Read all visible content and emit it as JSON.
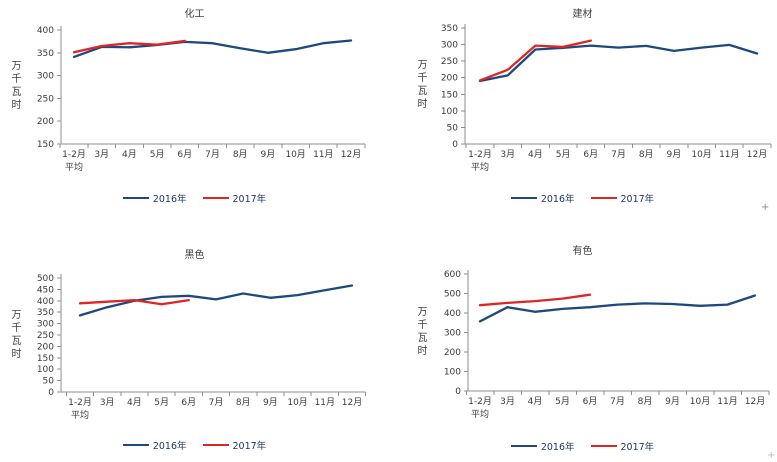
{
  "figure": {
    "background": "#ffffff",
    "artifact_plus": "+"
  },
  "chart_data": [
    {
      "type": "line",
      "title": "化工",
      "ylabel": "万千瓦时",
      "xlabel": "",
      "categories": [
        "1-2月平均",
        "3月",
        "4月",
        "5月",
        "6月",
        "7月",
        "8月",
        "9月",
        "10月",
        "11月",
        "12月"
      ],
      "ylim": [
        150,
        400
      ],
      "ytick_step": 50,
      "grid": false,
      "legend_position": "bottom",
      "series": [
        {
          "name": "2016年",
          "color": "#1F497D",
          "values": [
            341,
            363,
            362,
            367,
            374,
            371,
            360,
            350,
            358,
            371,
            377
          ]
        },
        {
          "name": "2017年",
          "color": "#E02525",
          "values": [
            351,
            365,
            371,
            368,
            376
          ]
        }
      ]
    },
    {
      "type": "line",
      "title": "建材",
      "ylabel": "万千瓦时",
      "xlabel": "",
      "categories": [
        "1-2月平均",
        "3月",
        "4月",
        "5月",
        "6月",
        "7月",
        "8月",
        "9月",
        "10月",
        "11月",
        "12月"
      ],
      "ylim": [
        0,
        350
      ],
      "ytick_step": 50,
      "grid": false,
      "legend_position": "bottom",
      "series": [
        {
          "name": "2016年",
          "color": "#1F497D",
          "values": [
            190,
            207,
            285,
            290,
            297,
            291,
            296,
            281,
            291,
            299,
            273
          ]
        },
        {
          "name": "2017年",
          "color": "#E02525",
          "values": [
            192,
            224,
            297,
            293,
            312
          ]
        }
      ]
    },
    {
      "type": "line",
      "title": "黑色",
      "ylabel": "万千瓦时",
      "xlabel": "",
      "categories": [
        "1-2月平均",
        "3月",
        "4月",
        "5月",
        "6月",
        "7月",
        "8月",
        "9月",
        "10月",
        "11月",
        "12月"
      ],
      "ylim": [
        0,
        500
      ],
      "ytick_step": 50,
      "grid": false,
      "legend_position": "bottom",
      "series": [
        {
          "name": "2016年",
          "color": "#1F497D",
          "values": [
            336,
            372,
            400,
            417,
            422,
            406,
            432,
            413,
            425,
            446,
            467
          ]
        },
        {
          "name": "2017年",
          "color": "#E02525",
          "values": [
            389,
            396,
            403,
            385,
            403
          ]
        }
      ]
    },
    {
      "type": "line",
      "title": "有色",
      "ylabel": "万千瓦时",
      "xlabel": "",
      "categories": [
        "1-2月平均",
        "3月",
        "4月",
        "5月",
        "6月",
        "7月",
        "8月",
        "9月",
        "10月",
        "11月",
        "12月"
      ],
      "ylim": [
        0,
        600
      ],
      "ytick_step": 100,
      "grid": false,
      "legend_position": "bottom",
      "series": [
        {
          "name": "2016年",
          "color": "#1F497D",
          "values": [
            357,
            430,
            406,
            421,
            430,
            443,
            449,
            446,
            437,
            443,
            490
          ]
        },
        {
          "name": "2017年",
          "color": "#E02525",
          "values": [
            440,
            452,
            461,
            474,
            494
          ]
        }
      ]
    }
  ]
}
